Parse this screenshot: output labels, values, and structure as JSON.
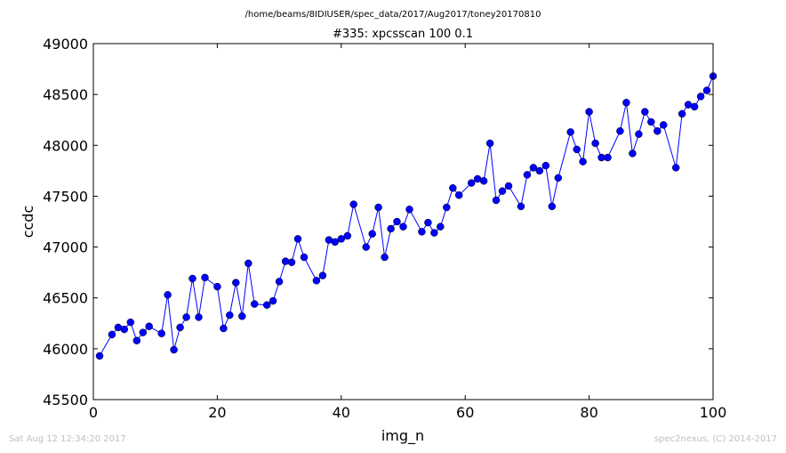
{
  "chart_data": {
    "type": "line",
    "suptitle": "/home/beams/8IDIUSER/spec_data/2017/Aug2017/toney20170810",
    "title": "#335: xpcsscan 100 0.1",
    "xlabel": "img_n",
    "ylabel": "ccdc",
    "xlim": [
      0,
      100
    ],
    "ylim": [
      45500,
      49000
    ],
    "xticks": [
      0,
      20,
      40,
      60,
      80,
      100
    ],
    "yticks": [
      45500,
      46000,
      46500,
      47000,
      47500,
      48000,
      48500,
      49000
    ],
    "grid": false,
    "marker": "circle",
    "color": "#0000ff",
    "series": [
      {
        "x": [
          1,
          3,
          4,
          5,
          6,
          7,
          8,
          9,
          11,
          12,
          13,
          14,
          15,
          16,
          17,
          18,
          20,
          21,
          22,
          23,
          24,
          25,
          26,
          28,
          29,
          30,
          31,
          32,
          33,
          34,
          36,
          37,
          38,
          39,
          40,
          41,
          42,
          44,
          45,
          46,
          47,
          48,
          49,
          50,
          51,
          53,
          54,
          55,
          56,
          57,
          58,
          59,
          61,
          62,
          63,
          64,
          65,
          66,
          67,
          69,
          70,
          71,
          72,
          73,
          74,
          75,
          77,
          78,
          79,
          80,
          81,
          82,
          83,
          85,
          86,
          87,
          88,
          89,
          90,
          91,
          92,
          94,
          95,
          96,
          97,
          98,
          99,
          100
        ],
        "y": [
          45930,
          46140,
          46210,
          46190,
          46260,
          46080,
          46160,
          46220,
          46150,
          46530,
          45990,
          46210,
          46310,
          46690,
          46310,
          46700,
          46610,
          46200,
          46330,
          46650,
          46320,
          46840,
          46440,
          46430,
          46470,
          46660,
          46860,
          46850,
          47080,
          46900,
          46670,
          46720,
          47070,
          47050,
          47080,
          47110,
          47420,
          47000,
          47130,
          47390,
          46900,
          47180,
          47250,
          47200,
          47370,
          47150,
          47240,
          47140,
          47200,
          47390,
          47580,
          47510,
          47630,
          47670,
          47650,
          48020,
          47460,
          47550,
          47600,
          47400,
          47710,
          47780,
          47750,
          47800,
          47400,
          47680,
          48130,
          47960,
          47840,
          48330,
          48020,
          47880,
          47880,
          48140,
          48420,
          47920,
          48110,
          48330,
          48230,
          48140,
          48200,
          47780,
          48310,
          48400,
          48380,
          48480,
          48540,
          48680
        ]
      }
    ]
  },
  "footer": {
    "left": "Sat Aug 12 12:34:20 2017",
    "right": "spec2nexus, (C) 2014-2017"
  }
}
